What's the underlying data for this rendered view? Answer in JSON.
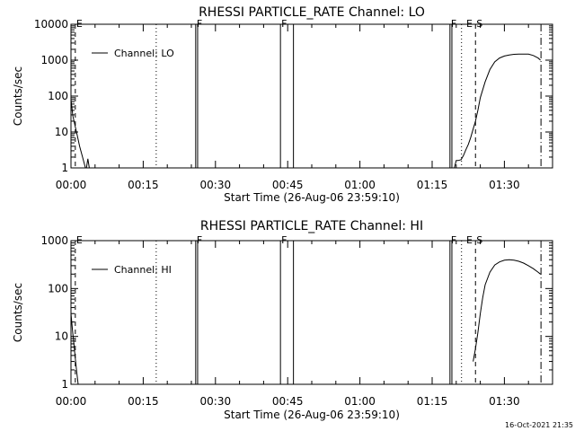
{
  "footer_timestamp": "16-Oct-2021 21:35",
  "time_unit": "minutes after start time",
  "chart_data": [
    {
      "type": "line",
      "title": "RHESSI PARTICLE_RATE Channel: LO",
      "xlabel": "Start Time (26-Aug-06 23:59:10)",
      "ylabel": "Counts/sec",
      "yscale": "log",
      "xlim": [
        0,
        100
      ],
      "ylim": [
        1,
        10000
      ],
      "xticks": [
        0,
        15,
        30,
        45,
        60,
        75,
        90
      ],
      "xtick_labels": [
        "00:00",
        "00:15",
        "00:30",
        "00:45",
        "01:00",
        "01:15",
        "01:30"
      ],
      "yticks": [
        1,
        10,
        100,
        1000,
        10000
      ],
      "ytick_labels": [
        "1",
        "10",
        "100",
        "1000",
        "10000"
      ],
      "legend": "Channel: LO",
      "legend_position": "top-left",
      "markers": [
        {
          "label": "E",
          "x": 0.9,
          "style": "dashed"
        },
        {
          "label": "",
          "x": 17.7,
          "style": "dotted"
        },
        {
          "label": "F",
          "x": 25.9,
          "style": "solid"
        },
        {
          "label": "",
          "x": 26.3,
          "style": "solid"
        },
        {
          "label": "F",
          "x": 43.5,
          "style": "solid"
        },
        {
          "label": "",
          "x": 46.2,
          "style": "solid"
        },
        {
          "label": "F",
          "x": 78.7,
          "style": "solid"
        },
        {
          "label": "",
          "x": 79.1,
          "style": "solid"
        },
        {
          "label": "",
          "x": 81.1,
          "style": "dotted"
        },
        {
          "label": "E",
          "x": 81.9,
          "style": "none"
        },
        {
          "label": "S",
          "x": 84.0,
          "style": "dashed"
        },
        {
          "label": "",
          "x": 97.6,
          "style": "dashdot"
        }
      ],
      "series": [
        {
          "name": "Channel: LO",
          "segments": [
            {
              "x": [
                0.0,
                0.4,
                0.9,
                1.3,
                1.8,
                2.4,
                3.0
              ],
              "y": [
                80,
                28,
                14,
                8,
                4,
                2,
                1
              ]
            },
            {
              "x": [
                3.2,
                3.5,
                3.8
              ],
              "y": [
                1,
                1.8,
                1
              ]
            },
            {
              "x": [
                79.6,
                80.0,
                80.4,
                81.0,
                81.5,
                82.0,
                82.5,
                83.0,
                83.5,
                84.0,
                84.5,
                85.0,
                86.0,
                87.0,
                88.0,
                89.0,
                90.0,
                91.0,
                92.0,
                93.0,
                94.0,
                95.0,
                96.0,
                97.0,
                97.5
              ],
              "y": [
                1,
                1.6,
                1.6,
                1.7,
                2.2,
                3.2,
                4.5,
                7,
                12,
                20,
                40,
                90,
                250,
                550,
                900,
                1150,
                1300,
                1400,
                1450,
                1480,
                1480,
                1470,
                1350,
                1150,
                1000
              ]
            }
          ]
        }
      ]
    },
    {
      "type": "line",
      "title": "RHESSI PARTICLE_RATE Channel: HI",
      "xlabel": "Start Time (26-Aug-06 23:59:10)",
      "ylabel": "Counts/sec",
      "yscale": "log",
      "xlim": [
        0,
        100
      ],
      "ylim": [
        1,
        1000
      ],
      "xticks": [
        0,
        15,
        30,
        45,
        60,
        75,
        90
      ],
      "xtick_labels": [
        "00:00",
        "00:15",
        "00:30",
        "00:45",
        "01:00",
        "01:15",
        "01:30"
      ],
      "yticks": [
        1,
        10,
        100,
        1000
      ],
      "ytick_labels": [
        "1",
        "10",
        "100",
        "1000"
      ],
      "legend": "Channel: HI",
      "legend_position": "top-left",
      "markers": [
        {
          "label": "E",
          "x": 0.9,
          "style": "dashed"
        },
        {
          "label": "",
          "x": 17.7,
          "style": "dotted"
        },
        {
          "label": "F",
          "x": 25.9,
          "style": "solid"
        },
        {
          "label": "",
          "x": 26.3,
          "style": "solid"
        },
        {
          "label": "F",
          "x": 43.5,
          "style": "solid"
        },
        {
          "label": "",
          "x": 46.2,
          "style": "solid"
        },
        {
          "label": "F",
          "x": 78.7,
          "style": "solid"
        },
        {
          "label": "",
          "x": 79.1,
          "style": "solid"
        },
        {
          "label": "",
          "x": 81.1,
          "style": "dotted"
        },
        {
          "label": "E",
          "x": 81.9,
          "style": "none"
        },
        {
          "label": "S",
          "x": 84.0,
          "style": "dashed"
        },
        {
          "label": "",
          "x": 97.6,
          "style": "dashdot"
        }
      ],
      "series": [
        {
          "name": "Channel: HI",
          "segments": [
            {
              "x": [
                0.0,
                0.3,
                0.6,
                0.9,
                1.2,
                1.5
              ],
              "y": [
                30,
                14,
                7,
                3.5,
                1.8,
                1
              ]
            },
            {
              "x": [
                83.5,
                84.0,
                84.5,
                85.0,
                85.5,
                86.0,
                87.0,
                88.0,
                89.0,
                90.0,
                91.0,
                92.0,
                93.0,
                94.0,
                95.0,
                96.0,
                97.0,
                97.5
              ],
              "y": [
                3,
                5.5,
                12,
                30,
                65,
                120,
                220,
                310,
                360,
                390,
                400,
                390,
                370,
                340,
                300,
                260,
                220,
                200
              ]
            }
          ]
        }
      ]
    }
  ]
}
